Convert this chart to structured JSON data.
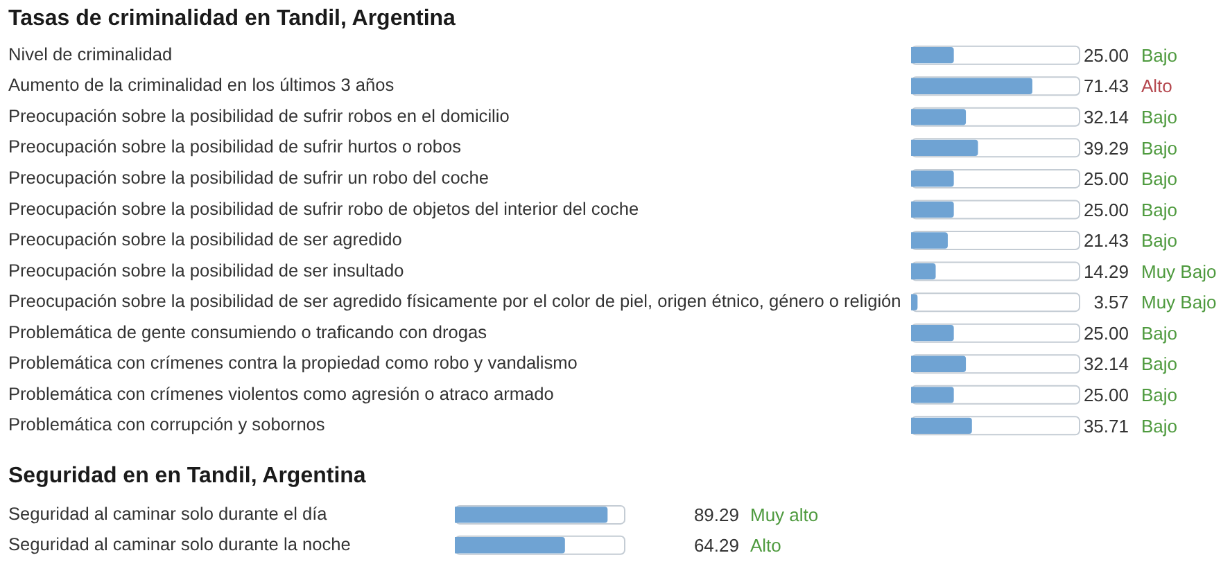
{
  "chart_data": [
    {
      "type": "bar",
      "orientation": "horizontal",
      "title": "Tasas de criminalidad en Tandil, Argentina",
      "categories": [
        "Nivel de criminalidad",
        "Aumento de la criminalidad en los últimos 3 años",
        "Preocupación sobre la posibilidad de sufrir robos en el domicilio",
        "Preocupación sobre la posibilidad de sufrir hurtos o robos",
        "Preocupación sobre la posibilidad de sufrir un robo del coche",
        "Preocupación sobre la posibilidad de sufrir robo de objetos del interior del coche",
        "Preocupación sobre la posibilidad de ser agredido",
        "Preocupación sobre la posibilidad de ser insultado",
        "Preocupación sobre la posibilidad de ser agredido físicamente por el color de piel, origen étnico, género o religión",
        "Problemática de gente consumiendo o traficando con drogas",
        "Problemática con crímenes contra la propiedad como robo y vandalismo",
        "Problemática con crímenes violentos como agresión o atraco armado",
        "Problemática con corrupción y sobornos"
      ],
      "values": [
        25.0,
        71.43,
        32.14,
        39.29,
        25.0,
        25.0,
        21.43,
        14.29,
        3.57,
        25.0,
        32.14,
        25.0,
        35.71
      ],
      "value_labels": [
        "25.00",
        "71.43",
        "32.14",
        "39.29",
        "25.00",
        "25.00",
        "21.43",
        "14.29",
        "3.57",
        "25.00",
        "32.14",
        "25.00",
        "35.71"
      ],
      "color": "#6fa3d3",
      "xlim": [
        0,
        100
      ],
      "tick_labels": "y",
      "grid": false,
      "legend": false,
      "annotations": [
        "Bajo",
        "Alto",
        "Bajo",
        "Bajo",
        "Bajo",
        "Bajo",
        "Bajo",
        "Muy Bajo",
        "Muy Bajo",
        "Bajo",
        "Bajo",
        "Bajo",
        "Bajo"
      ]
    },
    {
      "type": "bar",
      "orientation": "horizontal",
      "title": "Seguridad en en Tandil, Argentina",
      "categories": [
        "Seguridad al caminar solo durante el día",
        "Seguridad al caminar solo durante la noche"
      ],
      "values": [
        89.29,
        64.29
      ],
      "value_labels": [
        "89.29",
        "64.29"
      ],
      "color": "#6fa3d3",
      "xlim": [
        0,
        100
      ],
      "tick_labels": "y",
      "grid": false,
      "legend": false,
      "annotations": [
        "Muy alto",
        "Alto"
      ]
    }
  ]
}
